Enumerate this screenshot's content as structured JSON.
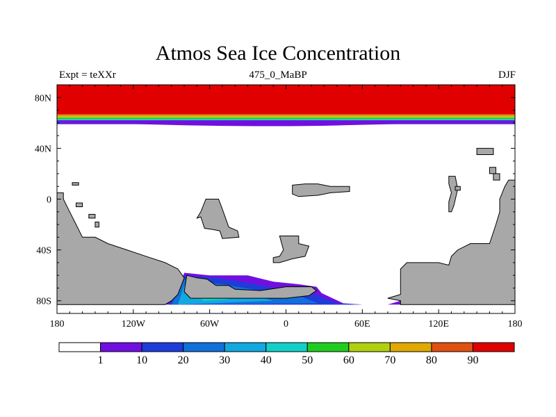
{
  "title": "Atmos Sea Ice Concentration",
  "subtitle_left": "Expt = teXXr",
  "subtitle_center": "475_0_MaBP",
  "subtitle_right": "DJF",
  "chart_data": {
    "type": "heatmap",
    "projection": "cylindrical-equidistant",
    "xlim": [
      -180,
      180
    ],
    "ylim": [
      -90,
      90
    ],
    "x_ticks": [
      {
        "value": -180,
        "label": "180"
      },
      {
        "value": -120,
        "label": "120W"
      },
      {
        "value": -60,
        "label": "60W"
      },
      {
        "value": 0,
        "label": "0"
      },
      {
        "value": 60,
        "label": "60E"
      },
      {
        "value": 120,
        "label": "120E"
      },
      {
        "value": 180,
        "label": "180"
      }
    ],
    "y_ticks": [
      {
        "value": 80,
        "label": "80N"
      },
      {
        "value": 40,
        "label": "40N"
      },
      {
        "value": 0,
        "label": "0"
      },
      {
        "value": -40,
        "label": "40S"
      },
      {
        "value": -80,
        "label": "80S"
      }
    ],
    "colorbar": {
      "levels": [
        "1",
        "10",
        "20",
        "30",
        "40",
        "50",
        "60",
        "70",
        "80",
        "90"
      ],
      "colors": [
        "#ffffff",
        "#7010e0",
        "#1e3cd8",
        "#1270d8",
        "#12a8e0",
        "#12d0c8",
        "#20cc20",
        "#b0d010",
        "#e0a800",
        "#e05010",
        "#e00000"
      ]
    },
    "land_color": "#a8a8a8",
    "arctic_ice_bands": [
      {
        "lat_top": 90,
        "lat_bottom": 67,
        "value": 95
      },
      {
        "lat_top": 67,
        "lat_bottom": 66,
        "value": 85
      },
      {
        "lat_top": 66,
        "lat_bottom": 65,
        "value": 75
      },
      {
        "lat_top": 65,
        "lat_bottom": 64,
        "value": 65
      },
      {
        "lat_top": 64,
        "lat_bottom": 63,
        "value": 55
      },
      {
        "lat_top": 63,
        "lat_bottom": 62.3,
        "value": 45
      },
      {
        "lat_top": 62.3,
        "lat_bottom": 61.5,
        "value": 35
      },
      {
        "lat_top": 61.5,
        "lat_bottom": 60.5,
        "value": 15
      },
      {
        "lat_top": 60.5,
        "lat_bottom": 59,
        "value": 5
      }
    ],
    "land_regions": [
      {
        "name": "western-continent",
        "points": [
          [
            -180,
            5
          ],
          [
            -175,
            5
          ],
          [
            -175,
            0
          ],
          [
            -170,
            -10
          ],
          [
            -165,
            -20
          ],
          [
            -160,
            -30
          ],
          [
            -150,
            -30
          ],
          [
            -140,
            -35
          ],
          [
            -125,
            -40
          ],
          [
            -110,
            -45
          ],
          [
            -95,
            -50
          ],
          [
            -85,
            -55
          ],
          [
            -80,
            -62
          ],
          [
            -85,
            -75
          ],
          [
            -90,
            -80
          ],
          [
            -95,
            -83
          ],
          [
            -180,
            -83
          ]
        ]
      },
      {
        "name": "western-island-1",
        "points": [
          [
            -165,
            -3
          ],
          [
            -160,
            -3
          ],
          [
            -160,
            -6
          ],
          [
            -165,
            -6
          ]
        ]
      },
      {
        "name": "western-island-2",
        "points": [
          [
            -155,
            -12
          ],
          [
            -150,
            -12
          ],
          [
            -150,
            -15
          ],
          [
            -155,
            -15
          ]
        ]
      },
      {
        "name": "western-island-3",
        "points": [
          [
            -150,
            -18
          ],
          [
            -147,
            -18
          ],
          [
            -147,
            -22
          ],
          [
            -150,
            -22
          ]
        ]
      },
      {
        "name": "far-west-islet",
        "points": [
          [
            -168,
            13
          ],
          [
            -163,
            13
          ],
          [
            -163,
            11
          ],
          [
            -168,
            11
          ]
        ]
      },
      {
        "name": "mid-west-island",
        "points": [
          [
            -63,
            0
          ],
          [
            -53,
            0
          ],
          [
            -50,
            -8
          ],
          [
            -45,
            -22
          ],
          [
            -38,
            -25
          ],
          [
            -37,
            -30
          ],
          [
            -50,
            -31
          ],
          [
            -52,
            -25
          ],
          [
            -57,
            -24
          ],
          [
            -64,
            -23
          ],
          [
            -67,
            -14
          ],
          [
            -70,
            -15
          ],
          [
            -67,
            -10
          ]
        ]
      },
      {
        "name": "mid-south-island",
        "points": [
          [
            -5,
            -29
          ],
          [
            10,
            -29
          ],
          [
            10,
            -35
          ],
          [
            18,
            -37
          ],
          [
            15,
            -45
          ],
          [
            5,
            -47
          ],
          [
            -5,
            -50
          ],
          [
            -10,
            -50
          ],
          [
            -10,
            -46
          ],
          [
            -5,
            -45
          ],
          [
            -2,
            -40
          ]
        ]
      },
      {
        "name": "central-north-island",
        "points": [
          [
            5,
            11
          ],
          [
            15,
            12
          ],
          [
            25,
            12
          ],
          [
            35,
            10
          ],
          [
            50,
            10
          ],
          [
            50,
            6
          ],
          [
            35,
            5
          ],
          [
            25,
            3
          ],
          [
            10,
            2
          ],
          [
            5,
            4
          ]
        ]
      },
      {
        "name": "southern-landmass",
        "points": [
          [
            -78,
            -60
          ],
          [
            -70,
            -62
          ],
          [
            -62,
            -63
          ],
          [
            -55,
            -68
          ],
          [
            -45,
            -68
          ],
          [
            -40,
            -71
          ],
          [
            -20,
            -72
          ],
          [
            0,
            -69
          ],
          [
            20,
            -69
          ],
          [
            24,
            -72
          ],
          [
            18,
            -76
          ],
          [
            0,
            -78
          ],
          [
            -40,
            -78
          ],
          [
            -75,
            -78
          ],
          [
            -80,
            -73
          ]
        ]
      },
      {
        "name": "eastern-continent",
        "points": [
          [
            180,
            15
          ],
          [
            180,
            -83
          ],
          [
            90,
            -83
          ],
          [
            90,
            -80
          ],
          [
            80,
            -78
          ],
          [
            90,
            -75
          ],
          [
            90,
            -55
          ],
          [
            95,
            -50
          ],
          [
            120,
            -50
          ],
          [
            128,
            -52
          ],
          [
            130,
            -45
          ],
          [
            135,
            -40
          ],
          [
            145,
            -35
          ],
          [
            160,
            -35
          ],
          [
            165,
            -20
          ],
          [
            168,
            -10
          ],
          [
            168,
            0
          ],
          [
            172,
            10
          ],
          [
            175,
            15
          ]
        ]
      },
      {
        "name": "east-island-1",
        "points": [
          [
            128,
            18
          ],
          [
            133,
            18
          ],
          [
            135,
            8
          ],
          [
            132,
            -5
          ],
          [
            130,
            -10
          ],
          [
            128,
            -10
          ],
          [
            128,
            -2
          ],
          [
            130,
            5
          ],
          [
            128,
            12
          ]
        ]
      },
      {
        "name": "east-island-2",
        "points": [
          [
            133,
            10
          ],
          [
            137,
            10
          ],
          [
            137,
            7
          ],
          [
            133,
            7
          ]
        ]
      },
      {
        "name": "east-island-3",
        "points": [
          [
            150,
            40
          ],
          [
            163,
            40
          ],
          [
            163,
            35
          ],
          [
            150,
            35
          ]
        ]
      },
      {
        "name": "east-island-4",
        "points": [
          [
            160,
            25
          ],
          [
            165,
            25
          ],
          [
            165,
            20
          ],
          [
            160,
            20
          ]
        ]
      },
      {
        "name": "east-island-5",
        "points": [
          [
            163,
            20
          ],
          [
            168,
            20
          ],
          [
            168,
            15
          ],
          [
            163,
            15
          ]
        ]
      }
    ],
    "antarctic_ice": [
      {
        "value": 5,
        "points": [
          [
            -80,
            -58
          ],
          [
            -60,
            -60
          ],
          [
            -30,
            -60
          ],
          [
            -10,
            -65
          ],
          [
            10,
            -67
          ],
          [
            24,
            -69
          ],
          [
            28,
            -74
          ],
          [
            45,
            -82
          ],
          [
            60,
            -83
          ],
          [
            80,
            -83
          ],
          [
            90,
            -80
          ],
          [
            102,
            -80
          ],
          [
            102,
            -83
          ],
          [
            -95,
            -83
          ],
          [
            -92,
            -78
          ],
          [
            -85,
            -72
          ],
          [
            -82,
            -64
          ]
        ]
      },
      {
        "value": 15,
        "points": [
          [
            -82,
            -60
          ],
          [
            -55,
            -62
          ],
          [
            -30,
            -66
          ],
          [
            -10,
            -70
          ],
          [
            10,
            -72
          ],
          [
            25,
            -76
          ],
          [
            40,
            -82
          ],
          [
            60,
            -83
          ],
          [
            -92,
            -83
          ],
          [
            -88,
            -75
          ]
        ]
      },
      {
        "value": 25,
        "points": [
          [
            -82,
            -63
          ],
          [
            -50,
            -67
          ],
          [
            -20,
            -72
          ],
          [
            10,
            -76
          ],
          [
            25,
            -82
          ],
          [
            -90,
            -83
          ],
          [
            -85,
            -72
          ]
        ]
      },
      {
        "value": 35,
        "points": [
          [
            -80,
            -68
          ],
          [
            -50,
            -71
          ],
          [
            -25,
            -76
          ],
          [
            -10,
            -80
          ],
          [
            -85,
            -83
          ]
        ]
      },
      {
        "value": 45,
        "points": [
          [
            -70,
            -76
          ],
          [
            -50,
            -77
          ],
          [
            -45,
            -79
          ],
          [
            -65,
            -80
          ]
        ]
      }
    ]
  }
}
